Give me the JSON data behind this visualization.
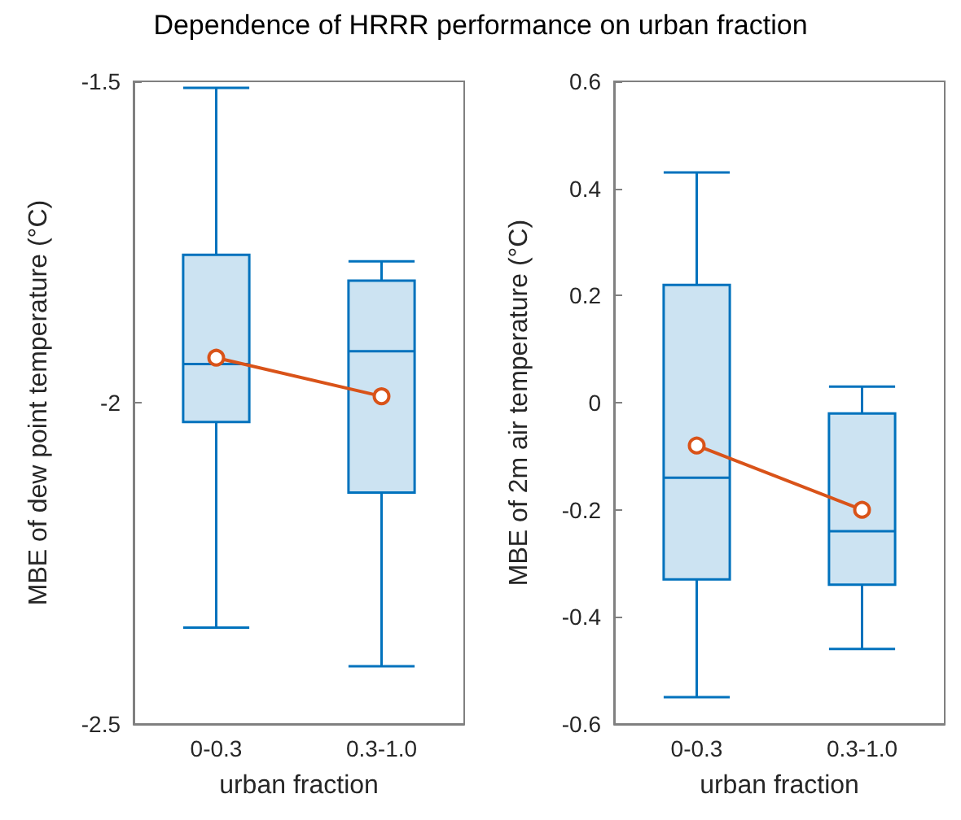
{
  "chart_data": [
    {
      "type": "box",
      "title": "Dependence of HRRR performance on urban fraction",
      "categories": [
        "0-0.3",
        "0.3-1.0"
      ],
      "xlabel": "urban fraction",
      "ylabel": "MBE of dew point temperature (°C)",
      "ylim": [
        -2.5,
        -1.5
      ],
      "yticks": [
        -2.5,
        -2,
        -1.5
      ],
      "series": [
        {
          "color": "#0072bd",
          "boxes": [
            {
              "low": -2.35,
              "q1": -2.03,
              "median": -1.94,
              "q3": -1.77,
              "high": -1.51
            },
            {
              "low": -2.41,
              "q1": -2.14,
              "median": -1.92,
              "q3": -1.81,
              "high": -1.78
            }
          ]
        },
        {
          "type": "line",
          "color": "#d95319",
          "marker": "circle",
          "values": [
            -1.93,
            -1.99
          ]
        }
      ]
    },
    {
      "type": "box",
      "categories": [
        "0-0.3",
        "0.3-1.0"
      ],
      "xlabel": "urban fraction",
      "ylabel": "MBE of 2m air temperature (°C)",
      "ylim": [
        -0.6,
        0.6
      ],
      "yticks": [
        -0.6,
        -0.4,
        -0.2,
        0,
        0.2,
        0.4,
        0.6
      ],
      "series": [
        {
          "color": "#0072bd",
          "boxes": [
            {
              "low": -0.55,
              "q1": -0.33,
              "median": -0.14,
              "q3": 0.22,
              "high": 0.43
            },
            {
              "low": -0.46,
              "q1": -0.34,
              "median": -0.24,
              "q3": -0.02,
              "high": 0.03
            }
          ]
        },
        {
          "type": "line",
          "color": "#d95319",
          "marker": "circle",
          "values": [
            -0.08,
            -0.2
          ]
        }
      ]
    }
  ]
}
